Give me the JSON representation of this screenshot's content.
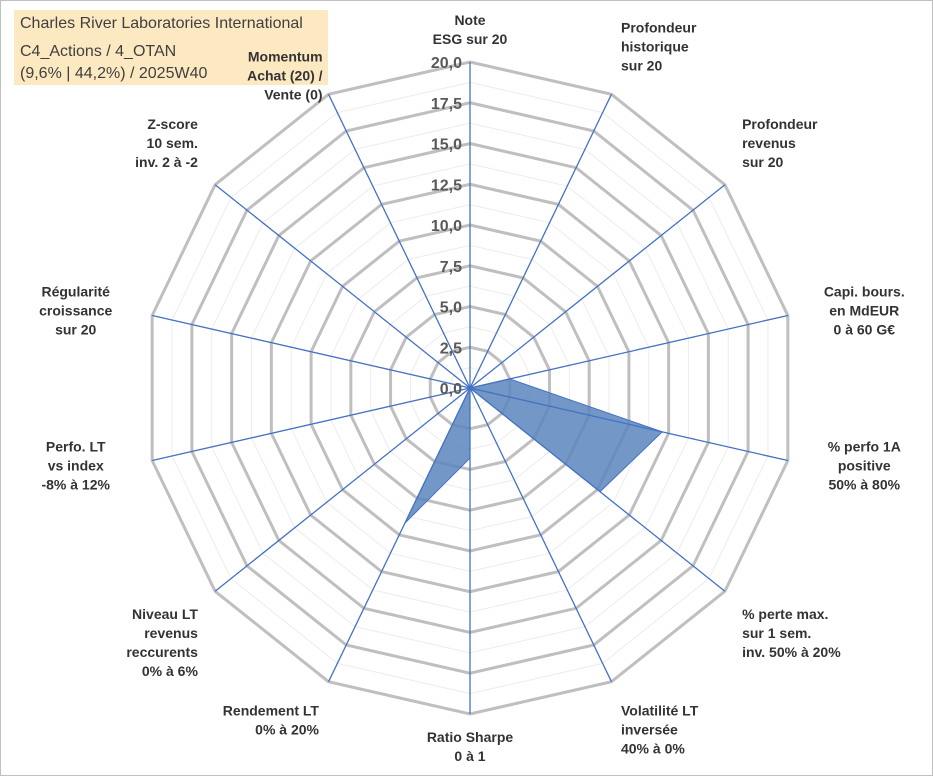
{
  "header": {
    "company": "Charles River Laboratories International",
    "category": "C4_Actions / 4_OTAN",
    "stats": "(9,6% | 44,2%) / 2025W40"
  },
  "chart_data": {
    "type": "radar",
    "title": "Charles River Laboratories International",
    "rmin": 0,
    "rmax": 20,
    "tick_step": 2.5,
    "tick_labels": [
      "0,0",
      "2,5",
      "5,0",
      "7,5",
      "10,0",
      "12,5",
      "15,0",
      "17,5",
      "20,0"
    ],
    "axes": [
      {
        "label": [
          "Note",
          "ESG sur 20"
        ],
        "value": 0
      },
      {
        "label": [
          "Profondeur",
          "historique",
          "sur 20"
        ],
        "value": 0
      },
      {
        "label": [
          "Profondeur",
          "revenus",
          "sur 20"
        ],
        "value": 0
      },
      {
        "label": [
          "Capi. bours.",
          "en MdEUR",
          "0 à 60 G€"
        ],
        "value": 2.5
      },
      {
        "label": [
          "% perfo 1A",
          "positive",
          "50% à 80%"
        ],
        "value": 12.1
      },
      {
        "label": [
          "% perte max.",
          "sur 1 sem.",
          "inv. 50% à 20%"
        ],
        "value": 10.2
      },
      {
        "label": [
          "Volatilité LT",
          "inversée",
          "40% à 0%"
        ],
        "value": 0
      },
      {
        "label": [
          "Ratio Sharpe",
          "0 à 1"
        ],
        "value": 4.3
      },
      {
        "label": [
          "Rendement LT",
          "0% à 20%"
        ],
        "value": 9.2
      },
      {
        "label": [
          "Niveau LT",
          "revenus",
          "reccurents",
          "0% à 6%"
        ],
        "value": 0
      },
      {
        "label": [
          "Perfo. LT",
          "vs index",
          "-8% à 12%"
        ],
        "value": 0
      },
      {
        "label": [
          "Régularité",
          "croissance",
          "sur 20"
        ],
        "value": 0
      },
      {
        "label": [
          "Z-score",
          "10 sem.",
          "inv. 2 à -2"
        ],
        "value": 0
      },
      {
        "label": [
          "Momentum",
          "Achat (20) /",
          "Vente (0)"
        ],
        "value": 0
      }
    ],
    "colors": {
      "series": "#4472c4",
      "fill": "#5b85bd",
      "grid": "#bfbfbf",
      "momentum_label": "#b8a982"
    }
  }
}
